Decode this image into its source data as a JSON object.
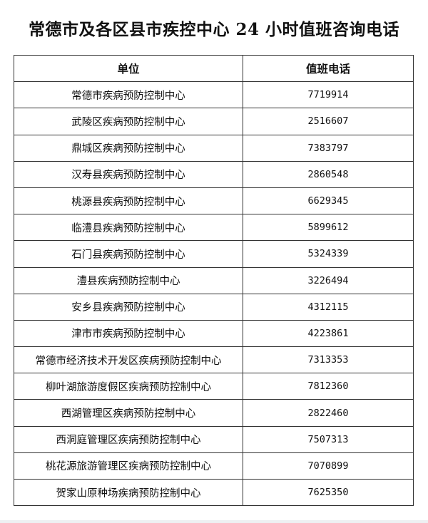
{
  "title": "常德市及各区县市疾控中心 24 小时值班咨询电话",
  "table": {
    "headers": [
      "单位",
      "值班电话"
    ],
    "rows": [
      {
        "unit": "常德市疾病预防控制中心",
        "phone": "7719914"
      },
      {
        "unit": "武陵区疾病预防控制中心",
        "phone": "2516607"
      },
      {
        "unit": "鼎城区疾病预防控制中心",
        "phone": "7383797"
      },
      {
        "unit": "汉寿县疾病预防控制中心",
        "phone": "2860548"
      },
      {
        "unit": "桃源县疾病预防控制中心",
        "phone": "6629345"
      },
      {
        "unit": "临澧县疾病预防控制中心",
        "phone": "5899612"
      },
      {
        "unit": "石门县疾病预防控制中心",
        "phone": "5324339"
      },
      {
        "unit": "澧县疾病预防控制中心",
        "phone": "3226494"
      },
      {
        "unit": "安乡县疾病预防控制中心",
        "phone": "4312115"
      },
      {
        "unit": "津市市疾病预防控制中心",
        "phone": "4223861"
      },
      {
        "unit": "常德市经济技术开发区疾病预防控制中心",
        "phone": "7313353"
      },
      {
        "unit": "柳叶湖旅游度假区疾病预防控制中心",
        "phone": "7812360"
      },
      {
        "unit": "西湖管理区疾病预防控制中心",
        "phone": "2822460"
      },
      {
        "unit": "西洞庭管理区疾病预防控制中心",
        "phone": "7507313"
      },
      {
        "unit": "桃花源旅游管理区疾病预防控制中心",
        "phone": "7070899"
      },
      {
        "unit": "贺家山原种场疾病预防控制中心",
        "phone": "7625350"
      }
    ]
  }
}
